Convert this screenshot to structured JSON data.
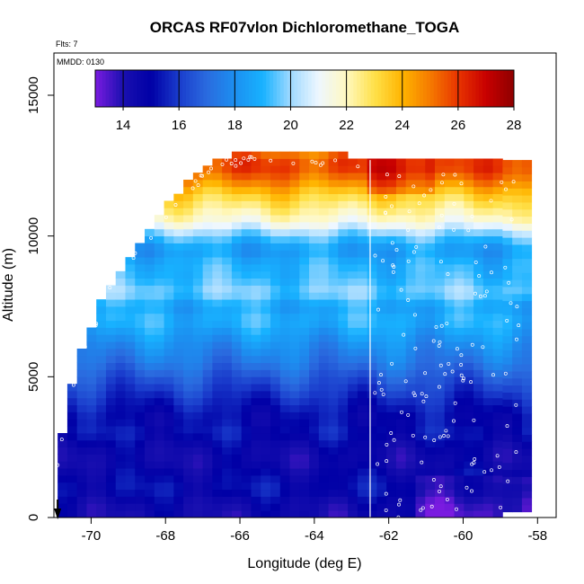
{
  "chart_data": {
    "type": "heatmap",
    "title": "ORCAS RF07vlon Dichloromethane_TOGA",
    "flights_note": "Flts: 7",
    "date_note": "MMDD: 0130",
    "xlabel": "Longitude (deg E)",
    "ylabel": "Altitude (m)",
    "xlim": [
      -71.0,
      -57.5
    ],
    "ylim": [
      0,
      16500
    ],
    "xticks": [
      -70,
      -68,
      -66,
      -64,
      -62,
      -60,
      -58
    ],
    "xtick_labels": [
      "-70",
      "-68",
      "-66",
      "-64",
      "-62",
      "-60",
      "-58"
    ],
    "yticks": [
      0,
      5000,
      10000,
      15000
    ],
    "ytick_labels": [
      "0",
      "5000",
      "10000",
      "15000"
    ],
    "colorbar": {
      "min": 13,
      "max": 28,
      "ticks": [
        14,
        16,
        18,
        20,
        22,
        24,
        26,
        28
      ],
      "tick_labels": [
        "14",
        "16",
        "18",
        "20",
        "22",
        "24",
        "26",
        "28"
      ],
      "colors": [
        "#7a1be0",
        "#1a10b0",
        "#0000a6",
        "#1a3ccc",
        "#2a6bdf",
        "#1c8ff0",
        "#18b2ff",
        "#9fd9ff",
        "#eef7ff",
        "#fff8c0",
        "#ffe14a",
        "#ffb400",
        "#f57a00",
        "#e83400",
        "#c80000",
        "#8e0000"
      ]
    },
    "longitude_range": [
      -70.9,
      -58.2
    ],
    "altitude_range": [
      0,
      13000
    ],
    "vertical_marker_longitude": -62.5,
    "arrow_longitude": -70.9,
    "profile": [
      {
        "alt": 13000,
        "value": 25.0
      },
      {
        "alt": 12500,
        "value": 26.0
      },
      {
        "alt": 12000,
        "value": 25.0
      },
      {
        "alt": 11500,
        "value": 23.5
      },
      {
        "alt": 11000,
        "value": 22.5
      },
      {
        "alt": 10500,
        "value": 21.5
      },
      {
        "alt": 10000,
        "value": 19.5
      },
      {
        "alt": 9500,
        "value": 18.3
      },
      {
        "alt": 9000,
        "value": 19.0
      },
      {
        "alt": 8500,
        "value": 19.2
      },
      {
        "alt": 8000,
        "value": 19.8
      },
      {
        "alt": 7500,
        "value": 18.6
      },
      {
        "alt": 7000,
        "value": 19.0
      },
      {
        "alt": 6500,
        "value": 18.4
      },
      {
        "alt": 6000,
        "value": 17.8
      },
      {
        "alt": 5500,
        "value": 17.3
      },
      {
        "alt": 5000,
        "value": 16.6
      },
      {
        "alt": 4500,
        "value": 16.0
      },
      {
        "alt": 4000,
        "value": 15.4
      },
      {
        "alt": 3500,
        "value": 15.0
      },
      {
        "alt": 3000,
        "value": 15.3
      },
      {
        "alt": 2500,
        "value": 14.6
      },
      {
        "alt": 2000,
        "value": 14.4
      },
      {
        "alt": 1500,
        "value": 14.9
      },
      {
        "alt": 1000,
        "value": 15.2
      },
      {
        "alt": 500,
        "value": 14.5
      },
      {
        "alt": 0,
        "value": 14.3
      }
    ]
  }
}
